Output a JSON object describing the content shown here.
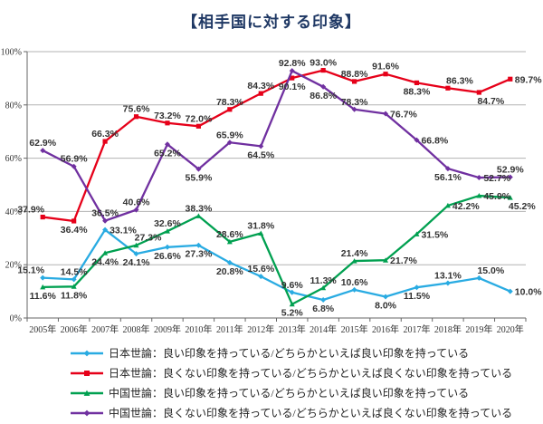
{
  "title": "【相手国に対する印象】",
  "colors": {
    "title": "#1f3864",
    "grid": "#b3b3b3",
    "axis": "#666666",
    "data_label": "#333333",
    "japan_good": "#29abe2",
    "japan_bad": "#e60019",
    "china_good": "#00a050",
    "china_bad": "#7030a0"
  },
  "chart_data": {
    "type": "line",
    "title": "【相手国に対する印象】",
    "categories": [
      "2005年",
      "2006年",
      "2007年",
      "2008年",
      "2009年",
      "2010年",
      "2011年",
      "2012年",
      "2013年",
      "2014年",
      "2015年",
      "2016年",
      "2017年",
      "2018年",
      "2019年",
      "2020年"
    ],
    "y_ticks": [
      0,
      20,
      40,
      60,
      80,
      100
    ],
    "ylim": [
      0,
      100
    ],
    "grid": true,
    "legend_position": "bottom",
    "series": [
      {
        "name": "日本世論：良い印象を持っている/どちらかといえば良い印象を持っている",
        "color": "#29abe2",
        "marker": "diamond",
        "values": [
          15.1,
          14.5,
          33.1,
          24.1,
          26.6,
          27.3,
          20.8,
          15.6,
          9.6,
          6.8,
          10.6,
          8.0,
          11.5,
          13.1,
          15.0,
          10.0
        ],
        "label_pos": [
          "above-left",
          "above",
          "right",
          "below",
          "below",
          "below",
          "below",
          "above",
          "above",
          "below",
          "above",
          "below",
          "below",
          "above",
          "above-right",
          "right"
        ]
      },
      {
        "name": "日本世論：良くない印象を持っている/どちらかといえば良くない印象を持っている",
        "color": "#e60019",
        "marker": "square",
        "values": [
          37.9,
          36.4,
          66.3,
          75.6,
          73.2,
          72.0,
          78.3,
          84.3,
          90.1,
          93.0,
          88.8,
          91.6,
          88.3,
          86.3,
          84.7,
          89.7
        ],
        "label_pos": [
          "above-left",
          "below",
          "above",
          "above",
          "above",
          "above",
          "above",
          "above",
          "below",
          "above",
          "above",
          "above",
          "below",
          "above-right",
          "below-right",
          "right"
        ]
      },
      {
        "name": "中国世論：良い印象を持っている/どちらかといえば良い印象を持っている",
        "color": "#00a050",
        "marker": "triangle",
        "values": [
          11.6,
          11.8,
          24.4,
          27.3,
          32.6,
          38.3,
          28.6,
          31.8,
          5.2,
          11.3,
          21.4,
          21.7,
          31.5,
          42.2,
          45.9,
          45.2
        ],
        "label_pos": [
          "below",
          "below",
          "below",
          "above-right",
          "above",
          "above",
          "above",
          "above",
          "below",
          "above",
          "above",
          "right",
          "right",
          "right",
          "right",
          "below-right"
        ]
      },
      {
        "name": "中国世論：良くない印象を持っている/どちらかといえば良くない印象を持っている",
        "color": "#7030a0",
        "marker": "diamond",
        "values": [
          62.9,
          56.9,
          36.5,
          40.6,
          65.2,
          55.9,
          65.9,
          64.5,
          92.8,
          86.8,
          78.3,
          76.7,
          66.8,
          56.1,
          52.7,
          52.9
        ],
        "label_pos": [
          "above",
          "above",
          "above",
          "above",
          "below",
          "below",
          "above",
          "below",
          "above",
          "below",
          "above",
          "right",
          "right",
          "below",
          "right",
          "above"
        ]
      }
    ]
  }
}
